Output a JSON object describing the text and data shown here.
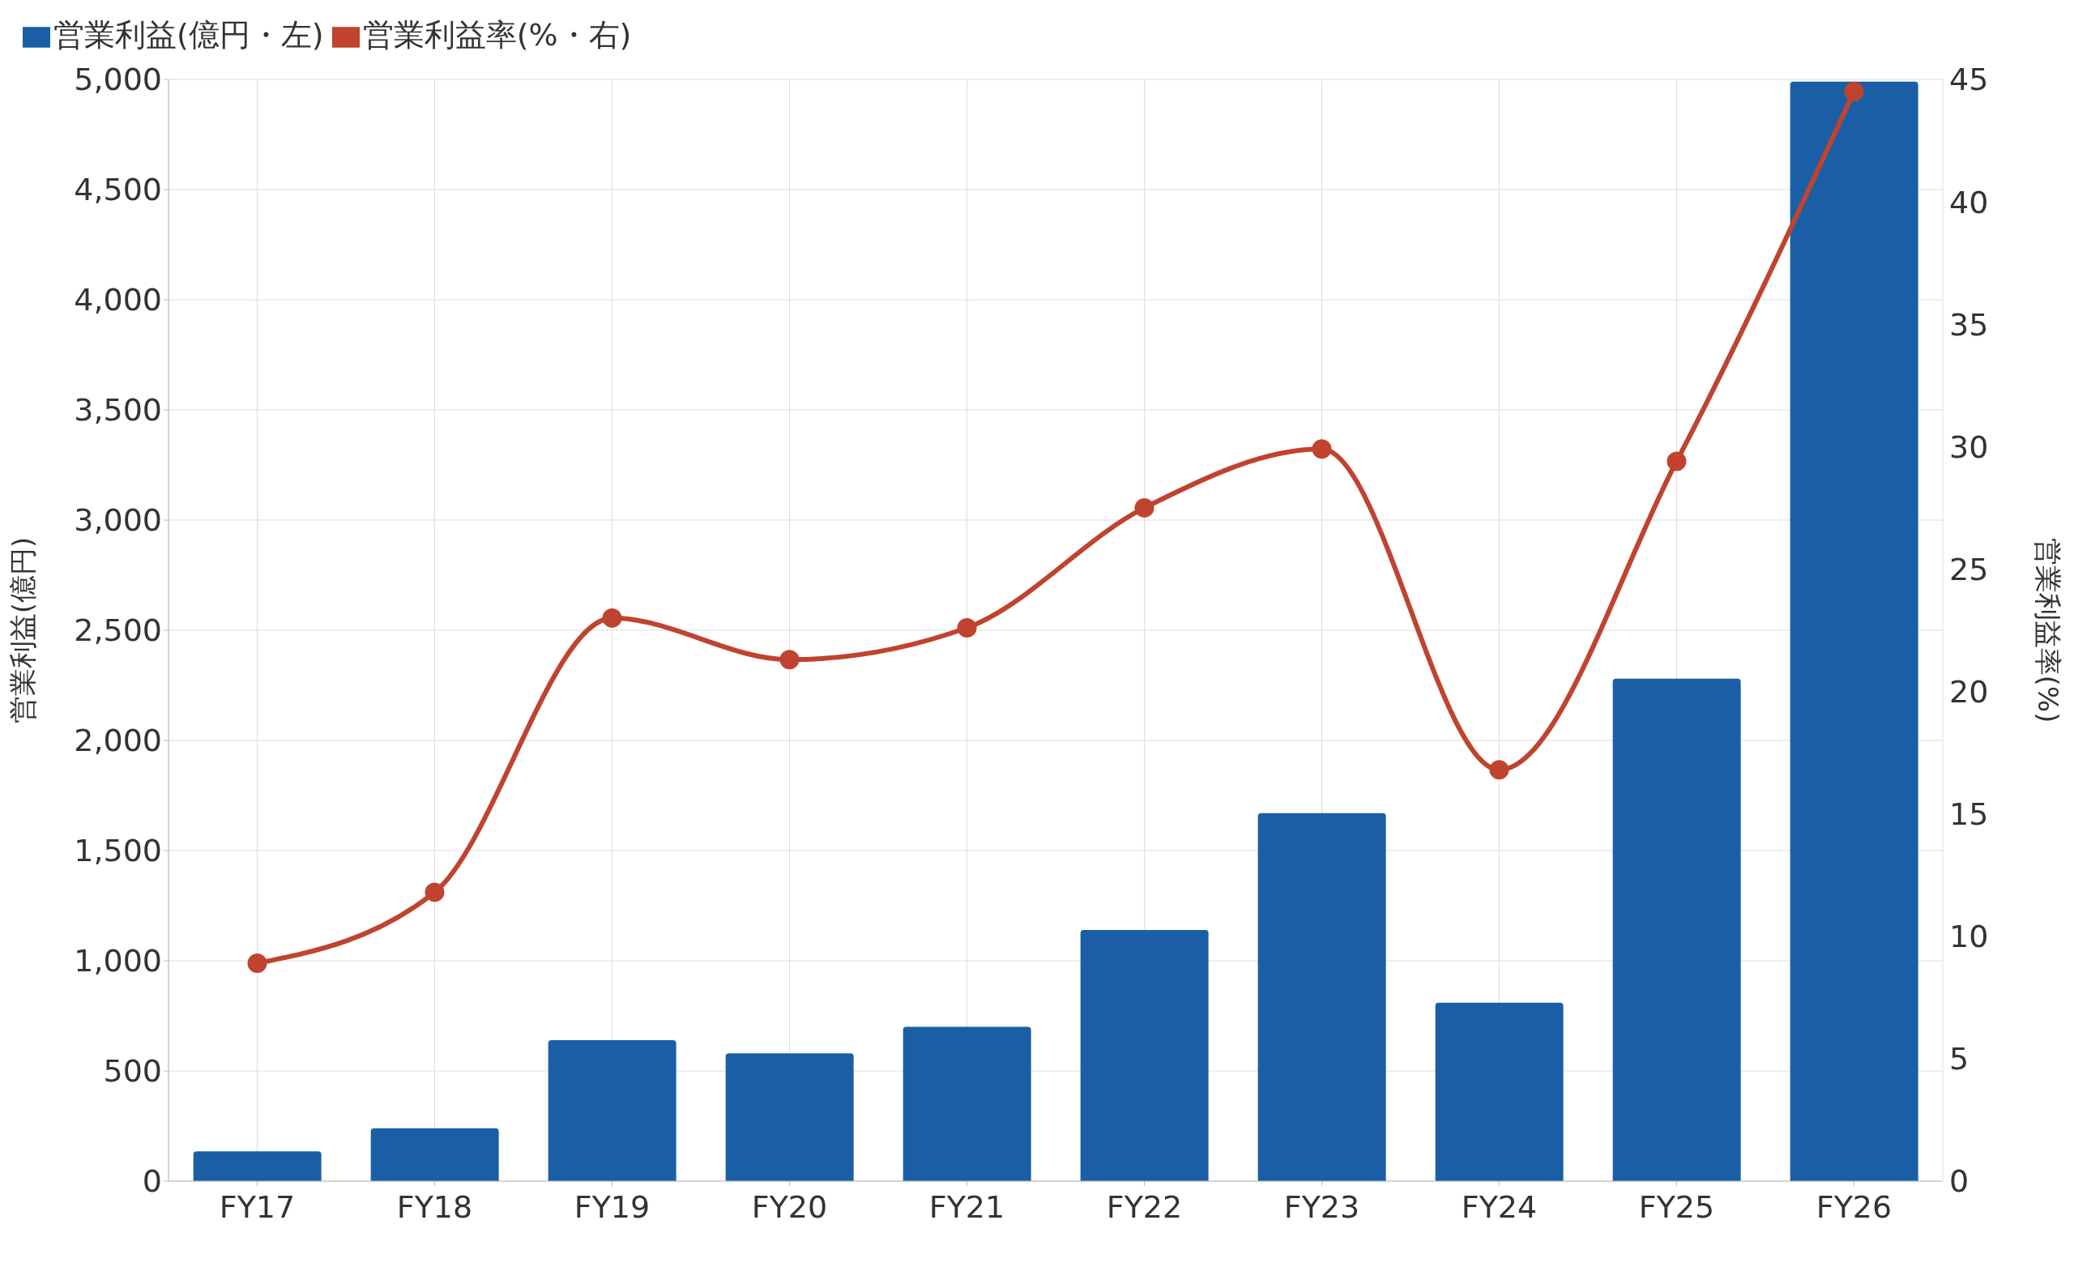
{
  "chart_data": {
    "type": "bar",
    "categories": [
      "FY17",
      "FY18",
      "FY19",
      "FY20",
      "FY21",
      "FY22",
      "FY23",
      "FY24",
      "FY25",
      "FY26"
    ],
    "series": [
      {
        "name": "営業利益(億円・左)",
        "color": "#1a5fa6",
        "values": [
          135,
          240,
          640,
          580,
          700,
          1140,
          1670,
          810,
          2280,
          4990
        ]
      },
      {
        "name": "営業利益率(%・右)",
        "type": "line",
        "axis": "y2",
        "color": "#c0432f",
        "values": [
          8.9,
          11.8,
          23.0,
          21.3,
          22.6,
          27.5,
          29.9,
          16.8,
          29.4,
          44.5
        ]
      }
    ],
    "ylabel": "営業利益(億円)",
    "y2label": "営業利益率(%)",
    "ylim": [
      0,
      5000
    ],
    "yticks": [
      0,
      500,
      {
        "value": 1000,
        "label": "1,000"
      },
      {
        "value": 1500,
        "label": "1,500"
      },
      {
        "value": 2000,
        "label": "2,000"
      },
      {
        "value": 2500,
        "label": "2,500"
      },
      {
        "value": 3000,
        "label": "3,000"
      },
      {
        "value": 3500,
        "label": "3,500"
      },
      {
        "value": 4000,
        "label": "4,000"
      },
      {
        "value": 4500,
        "label": "4,500"
      },
      {
        "value": 5000,
        "label": "5,000"
      }
    ],
    "y2lim": [
      0,
      45
    ],
    "y2ticks": [
      0,
      5,
      10,
      15,
      20,
      25,
      30,
      35,
      40,
      45
    ],
    "grid": true,
    "legend": "top left",
    "marker": "circle",
    "line_style": "solid"
  }
}
